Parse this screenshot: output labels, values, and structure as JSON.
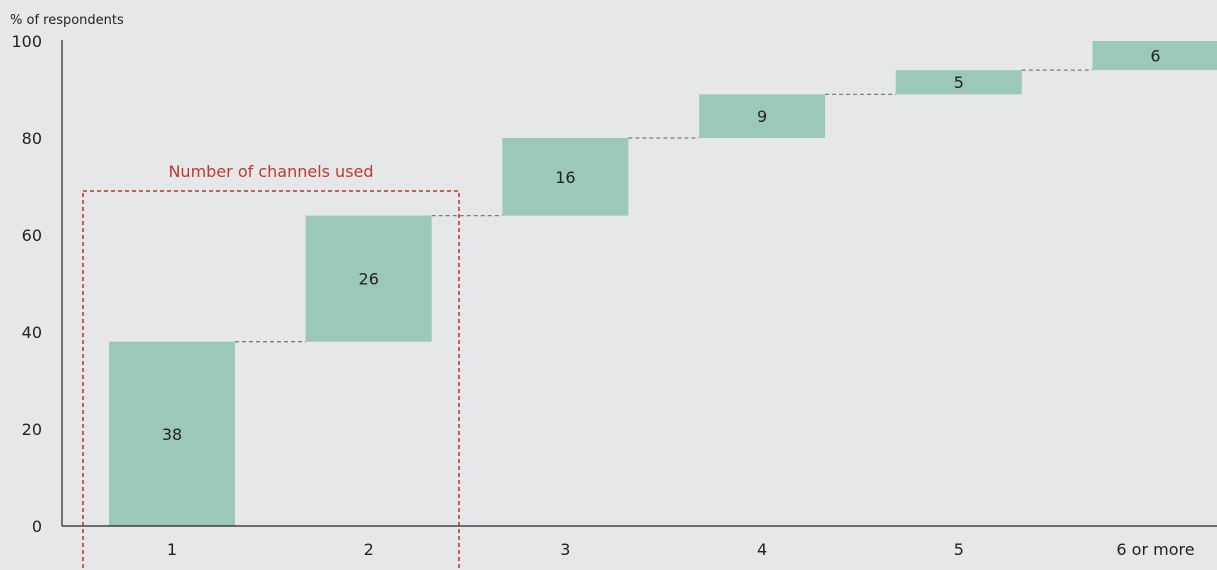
{
  "chart_data": {
    "type": "bar",
    "subtype": "waterfall",
    "ylabel": "% of respondents",
    "xlabel": "",
    "ylim": [
      0,
      100
    ],
    "yticks": [
      0,
      20,
      40,
      60,
      80,
      100
    ],
    "categories": [
      "1",
      "2",
      "3",
      "4",
      "5",
      "6 or more"
    ],
    "values": [
      38,
      26,
      16,
      9,
      5,
      6
    ],
    "annotation": "Number of channels used",
    "grid": false,
    "colors": {
      "bar": "#9cc8b9",
      "connector": "#7b7d80",
      "annotation": "#c0392b",
      "axis": "#222222",
      "background": "#e6e7e8"
    }
  }
}
